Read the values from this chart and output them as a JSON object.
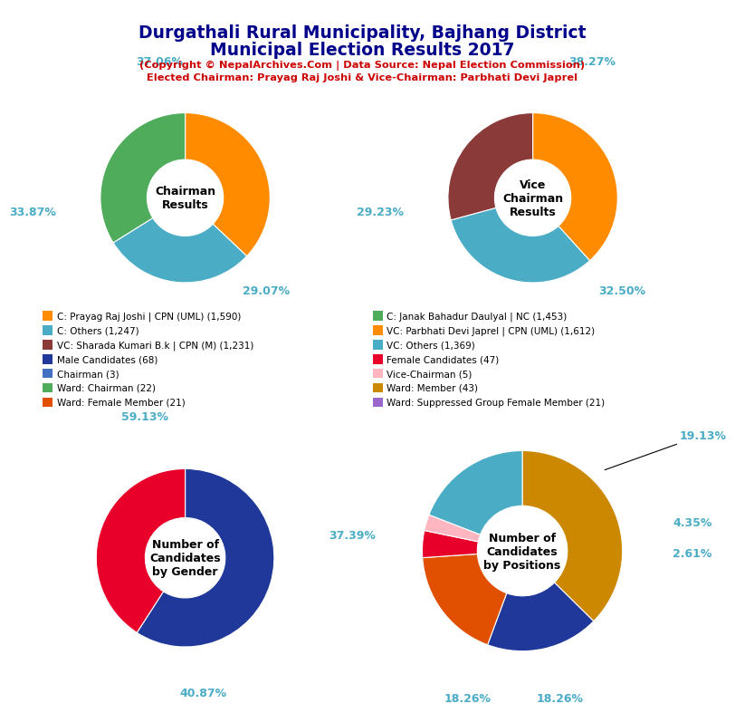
{
  "title_line1": "Durgathali Rural Municipality, Bajhang District",
  "title_line2": "Municipal Election Results 2017",
  "subtitle_line1": "(Copyright © NepalArchives.Com | Data Source: Nepal Election Commission)",
  "subtitle_line2": "Elected Chairman: Prayag Raj Joshi & Vice-Chairman: Parbhati Devi Japrel",
  "chairman_slices": [
    37.06,
    29.07,
    33.87
  ],
  "chairman_colors": [
    "#FF8C00",
    "#4BACC6",
    "#4EAC5B"
  ],
  "chairman_center_text": "Chairman\nResults",
  "vice_slices": [
    38.27,
    32.5,
    29.23
  ],
  "vice_colors": [
    "#FF8C00",
    "#4BACC6",
    "#8B3A3A"
  ],
  "vice_center_text": "Vice\nChairman\nResults",
  "gender_slices": [
    59.13,
    40.87
  ],
  "gender_colors": [
    "#1F3899",
    "#E8002B"
  ],
  "gender_center_text": "Number of\nCandidates\nby Gender",
  "positions_slices": [
    37.39,
    18.26,
    18.26,
    4.35,
    2.61,
    19.13
  ],
  "positions_colors": [
    "#CC8800",
    "#1F3899",
    "#E05000",
    "#E8002B",
    "#FFB6C1",
    "#4BACC6"
  ],
  "positions_center_text": "Number of\nCandidates\nby Positions",
  "legend_items": [
    {
      "label": "C: Prayag Raj Joshi | CPN (UML) (1,590)",
      "color": "#FF8C00"
    },
    {
      "label": "C: Others (1,247)",
      "color": "#4BACC6"
    },
    {
      "label": "VC: Sharada Kumari B.k | CPN (M) (1,231)",
      "color": "#8B3A3A"
    },
    {
      "label": "Male Candidates (68)",
      "color": "#1F3899"
    },
    {
      "label": "Chairman (3)",
      "color": "#4470C4"
    },
    {
      "label": "Ward: Chairman (22)",
      "color": "#4EAC5B"
    },
    {
      "label": "Ward: Female Member (21)",
      "color": "#E05000"
    },
    {
      "label": "C: Janak Bahadur Daulyal | NC (1,453)",
      "color": "#4EAC5B"
    },
    {
      "label": "VC: Parbhati Devi Japrel | CPN (UML) (1,612)",
      "color": "#FF8C00"
    },
    {
      "label": "VC: Others (1,369)",
      "color": "#4BACC6"
    },
    {
      "label": "Female Candidates (47)",
      "color": "#E8002B"
    },
    {
      "label": "Vice-Chairman (5)",
      "color": "#FFB6C1"
    },
    {
      "label": "Ward: Member (43)",
      "color": "#CC8800"
    },
    {
      "label": "Ward: Suppressed Group Female Member (21)",
      "color": "#9966CC"
    }
  ],
  "background_color": "#FFFFFF",
  "title_color": "#00008B",
  "subtitle_color": "#CC0000",
  "pct_color": "#4BACC6",
  "center_text_color": "#000000"
}
